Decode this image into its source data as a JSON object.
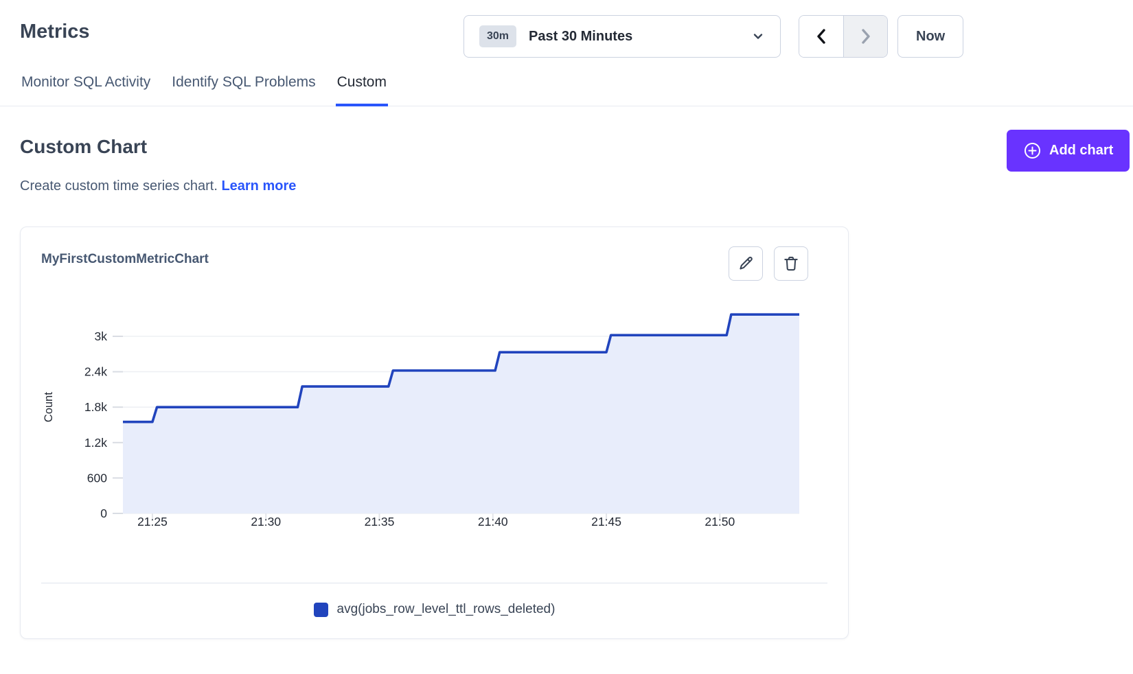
{
  "page": {
    "title": "Metrics"
  },
  "time_controls": {
    "range_badge": "30m",
    "range_label": "Past 30 Minutes",
    "back_icon": "chevron-left",
    "forward_icon": "chevron-right",
    "forward_disabled": true,
    "now_label": "Now"
  },
  "tabs": [
    {
      "label": "Monitor SQL Activity",
      "active": false
    },
    {
      "label": "Identify SQL Problems",
      "active": false
    },
    {
      "label": "Custom",
      "active": true
    }
  ],
  "section": {
    "title": "Custom Chart",
    "description": "Create custom time series chart.",
    "learn_more_label": "Learn more",
    "add_chart_label": "Add chart"
  },
  "card": {
    "title": "MyFirstCustomMetricChart",
    "edit_icon": "pencil",
    "delete_icon": "trash"
  },
  "colors": {
    "accent_purple": "#6933ff",
    "link_blue": "#2955fb",
    "series_blue": "#2144bd",
    "series_fill": "#e8edfb",
    "gridline": "#eef0f4",
    "tick_mark": "#d9dce3"
  },
  "chart_data": {
    "type": "area",
    "step": true,
    "title": "MyFirstCustomMetricChart",
    "xlabel": "",
    "ylabel": "Count",
    "grid": true,
    "legend_position": "bottom",
    "x_axis": {
      "unit": "time (HH:MM)",
      "tick_labels": [
        "21:25",
        "21:30",
        "21:35",
        "21:40",
        "21:45",
        "21:50"
      ],
      "tick_minutes": [
        25,
        30,
        35,
        40,
        45,
        50
      ],
      "range_minutes": [
        23.7,
        53.5
      ]
    },
    "y_axis": {
      "tick_labels": [
        "0",
        "600",
        "1.2k",
        "1.8k",
        "2.4k",
        "3k"
      ],
      "tick_values": [
        0,
        600,
        1200,
        1800,
        2400,
        3000
      ],
      "ylim": [
        0,
        3600
      ]
    },
    "series": [
      {
        "name": "avg(jobs_row_level_ttl_rows_deleted)",
        "color": "#2144bd",
        "fill_color": "#e8edfb",
        "x_minutes": [
          23.7,
          25.0,
          25.2,
          31.4,
          31.6,
          35.4,
          35.6,
          40.1,
          40.3,
          45.0,
          45.2,
          50.3,
          50.5,
          53.5
        ],
        "values": [
          1550,
          1550,
          1800,
          1800,
          2150,
          2150,
          2420,
          2420,
          2730,
          2730,
          3020,
          3020,
          3370,
          3370
        ]
      }
    ]
  }
}
